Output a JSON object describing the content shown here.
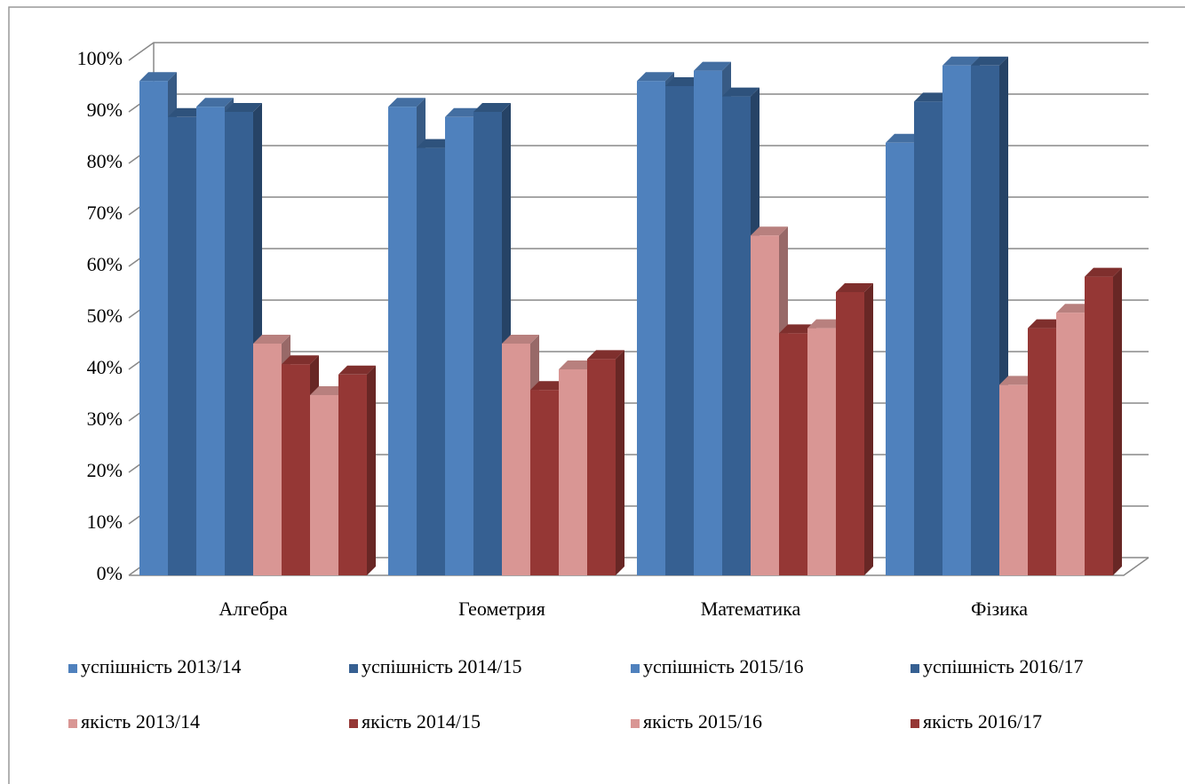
{
  "chart_data": {
    "type": "bar3d",
    "categories": [
      "Алгебра",
      "Геометрия",
      "Математика",
      "Фізика"
    ],
    "series": [
      {
        "name": "успішність 2013/14",
        "color": "#4f81bd",
        "values": [
          96,
          91,
          96,
          84
        ]
      },
      {
        "name": "успішність 2014/15",
        "color": "#366092",
        "values": [
          89,
          83,
          95,
          92
        ]
      },
      {
        "name": "успішність 2015/16",
        "color": "#4f81bd",
        "values": [
          91,
          89,
          98,
          99
        ]
      },
      {
        "name": "успішність 2016/17",
        "color": "#366092",
        "values": [
          90,
          90,
          93,
          99
        ]
      },
      {
        "name": "якість 2013/14",
        "color": "#d99694",
        "values": [
          45,
          45,
          66,
          37
        ]
      },
      {
        "name": "якість 2014/15",
        "color": "#953735",
        "values": [
          41,
          36,
          47,
          48
        ]
      },
      {
        "name": "якість 2015/16",
        "color": "#d99694",
        "values": [
          35,
          40,
          48,
          51
        ]
      },
      {
        "name": "якість 2016/17",
        "color": "#953735",
        "values": [
          39,
          42,
          55,
          58
        ]
      }
    ],
    "ylim": [
      0,
      100
    ],
    "yticks": [
      {
        "value": 0,
        "label": "0%"
      },
      {
        "value": 10,
        "label": "10%"
      },
      {
        "value": 20,
        "label": "20%"
      },
      {
        "value": 30,
        "label": "30%"
      },
      {
        "value": 40,
        "label": "40%"
      },
      {
        "value": 50,
        "label": "50%"
      },
      {
        "value": 60,
        "label": "60%"
      },
      {
        "value": 70,
        "label": "70%"
      },
      {
        "value": 80,
        "label": "80%"
      },
      {
        "value": 90,
        "label": "90%"
      },
      {
        "value": 100,
        "label": "100%"
      }
    ],
    "grid": true,
    "legend": "bottom"
  }
}
